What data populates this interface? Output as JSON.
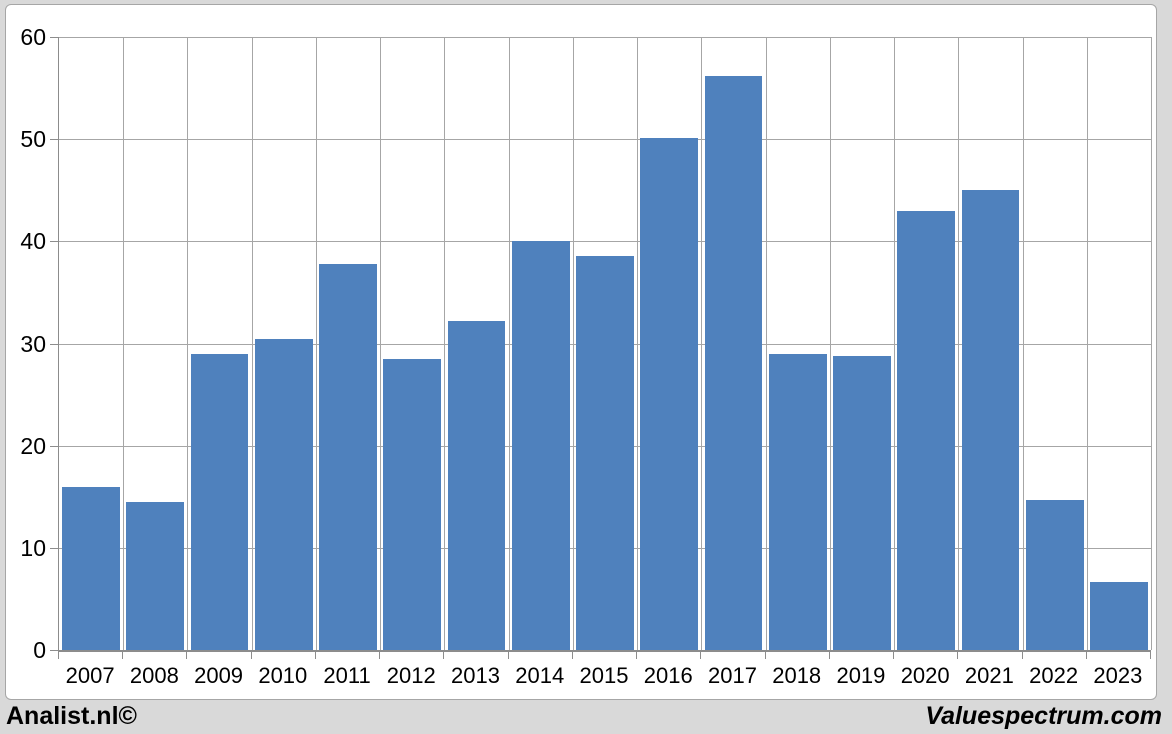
{
  "chart_data": {
    "type": "bar",
    "title": "",
    "xlabel": "",
    "ylabel": "",
    "categories": [
      "2007",
      "2008",
      "2009",
      "2010",
      "2011",
      "2012",
      "2013",
      "2014",
      "2015",
      "2016",
      "2017",
      "2018",
      "2019",
      "2020",
      "2021",
      "2022",
      "2023"
    ],
    "values": [
      16,
      14.5,
      29,
      30.4,
      37.8,
      28.5,
      32.2,
      40,
      38.6,
      50.1,
      56.2,
      29,
      28.8,
      43,
      45,
      14.7,
      6.7
    ],
    "ylim": [
      0,
      60
    ],
    "yticks": [
      0,
      10,
      20,
      30,
      40,
      50,
      60
    ],
    "grid": true,
    "legend": "none",
    "bar_color": "#4f81bd",
    "gridline_color": "#a6a6a6",
    "axis_color": "#8c8c8c",
    "plot_background": "#ffffff",
    "page_background": "#d9d9d9"
  },
  "footer": {
    "left_text": "Analist.nl©",
    "right_text": "Valuespectrum.com"
  }
}
